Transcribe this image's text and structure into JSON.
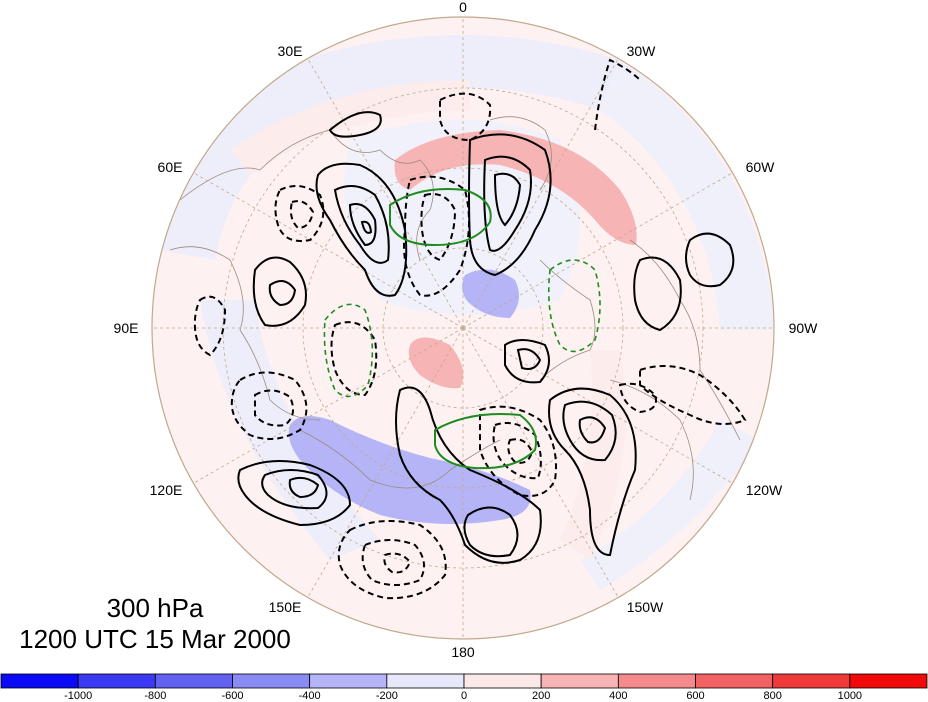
{
  "map": {
    "projection": "north polar stereographic",
    "longitude_labels": {
      "top": "0",
      "top_left": "30E",
      "top_right": "30W",
      "upper_left": "60E",
      "upper_right": "60W",
      "left": "90E",
      "right": "90W",
      "lower_left": "120E",
      "lower_right": "120W",
      "bottom_left": "150E",
      "bottom_right": "150W",
      "bottom": "180"
    },
    "contour_styles": {
      "positive": "solid black",
      "negative": "dashed black",
      "highlight": "solid/dashed green"
    }
  },
  "caption": {
    "level": "300 hPa",
    "datetime": "1200 UTC 15 Mar 2000"
  },
  "colorbar": {
    "ticks": [
      "-1000",
      "-800",
      "-600",
      "-400",
      "-200",
      "0",
      "200",
      "400",
      "600",
      "800",
      "1000"
    ],
    "colors": [
      "#0a0af5",
      "#3a3af2",
      "#6262f2",
      "#8a8af4",
      "#b4b4f7",
      "#e8e8fb",
      "#fbe8e8",
      "#f7b4b4",
      "#f48a8a",
      "#f26262",
      "#f03a3a",
      "#f00a0a"
    ]
  }
}
